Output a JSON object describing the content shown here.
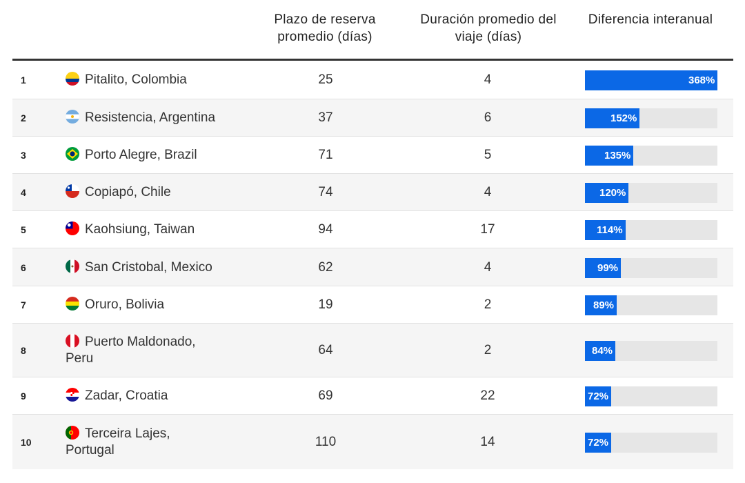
{
  "headers": {
    "booking": "Plazo de reserva promedio (días)",
    "duration": "Duración promedio del viaje (días)",
    "diff": "Diferencia interanual"
  },
  "colors": {
    "bar": "#0b68e6",
    "track": "#e6e6e6",
    "row_alt": "#f5f5f5"
  },
  "chart_data": {
    "type": "table",
    "columns": [
      "",
      "",
      "Plazo de reserva promedio (días)",
      "Duración promedio del viaje (días)",
      "Diferencia interanual"
    ],
    "max_pct": 368,
    "rows": [
      {
        "rank": "1",
        "destination": "Pitalito, Colombia",
        "flag": "colombia-flag-icon",
        "booking": "25",
        "duration": "4",
        "pct": 368,
        "pct_label": "368%"
      },
      {
        "rank": "2",
        "destination": "Resistencia, Argentina",
        "flag": "argentina-flag-icon",
        "booking": "37",
        "duration": "6",
        "pct": 152,
        "pct_label": "152%"
      },
      {
        "rank": "3",
        "destination": "Porto Alegre, Brazil",
        "flag": "brazil-flag-icon",
        "booking": "71",
        "duration": "5",
        "pct": 135,
        "pct_label": "135%"
      },
      {
        "rank": "4",
        "destination": "Copiapó, Chile",
        "flag": "chile-flag-icon",
        "booking": "74",
        "duration": "4",
        "pct": 120,
        "pct_label": "120%"
      },
      {
        "rank": "5",
        "destination": "Kaohsiung, Taiwan",
        "flag": "taiwan-flag-icon",
        "booking": "94",
        "duration": "17",
        "pct": 114,
        "pct_label": "114%"
      },
      {
        "rank": "6",
        "destination": "San Cristobal, Mexico",
        "flag": "mexico-flag-icon",
        "booking": "62",
        "duration": "4",
        "pct": 99,
        "pct_label": "99%"
      },
      {
        "rank": "7",
        "destination": "Oruro, Bolivia",
        "flag": "bolivia-flag-icon",
        "booking": "19",
        "duration": "2",
        "pct": 89,
        "pct_label": "89%"
      },
      {
        "rank": "8",
        "destination": "Puerto Maldonado, Peru",
        "flag": "peru-flag-icon",
        "booking": "64",
        "duration": "2",
        "pct": 84,
        "pct_label": "84%"
      },
      {
        "rank": "9",
        "destination": "Zadar, Croatia",
        "flag": "croatia-flag-icon",
        "booking": "69",
        "duration": "22",
        "pct": 72,
        "pct_label": "72%"
      },
      {
        "rank": "10",
        "destination": "Terceira Lajes, Portugal",
        "flag": "portugal-flag-icon",
        "booking": "110",
        "duration": "14",
        "pct": 72,
        "pct_label": "72%"
      }
    ]
  }
}
